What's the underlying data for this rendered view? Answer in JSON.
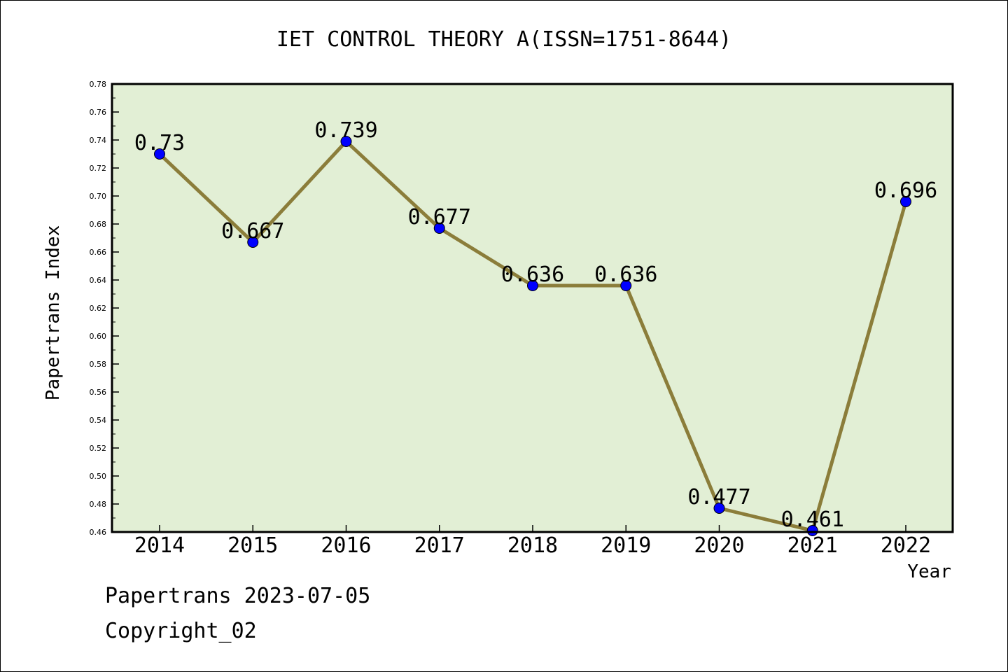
{
  "chart_data": {
    "type": "line",
    "title": "IET CONTROL THEORY A(ISSN=1751-8644)",
    "xlabel": "Year",
    "ylabel": "Papertrans Index",
    "categories": [
      "2014",
      "2015",
      "2016",
      "2017",
      "2018",
      "2019",
      "2020",
      "2021",
      "2022"
    ],
    "values": [
      0.73,
      0.667,
      0.739,
      0.677,
      0.636,
      0.636,
      0.477,
      0.461,
      0.696
    ],
    "data_labels": [
      "0.73",
      "0.667",
      "0.739",
      "0.677",
      "0.636",
      "0.636",
      "0.477",
      "0.461",
      "0.696"
    ],
    "ylim": [
      0.46,
      0.78
    ],
    "yticks": [
      "0.46",
      "0.48",
      "0.50",
      "0.52",
      "0.54",
      "0.56",
      "0.58",
      "0.60",
      "0.62",
      "0.64",
      "0.66",
      "0.68",
      "0.70",
      "0.72",
      "0.74",
      "0.76",
      "0.78"
    ],
    "grid": false,
    "colors": {
      "plot_background": "#e2efd5",
      "line": "#8b7d3a",
      "marker": "#0000ff"
    }
  },
  "footer": {
    "source": "Papertrans 2023-07-05",
    "copyright": "Copyright_02"
  }
}
